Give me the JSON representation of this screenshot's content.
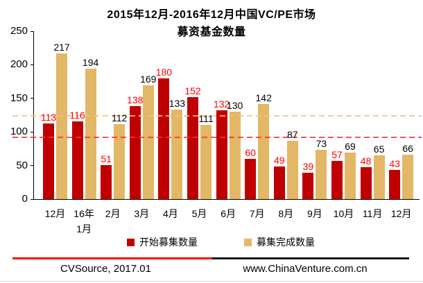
{
  "title": {
    "line1": "2015年12月-2016年12月中国VC/PE市场",
    "line2": "募资基金数量"
  },
  "chart_data": {
    "type": "bar",
    "title": "2015年12月-2016年12月中国VC/PE市场 募资基金数量",
    "categories": [
      [
        "12月"
      ],
      [
        "16年",
        "1月"
      ],
      [
        "2月"
      ],
      [
        "3月"
      ],
      [
        "4月"
      ],
      [
        "5月"
      ],
      [
        "6月"
      ],
      [
        "7月"
      ],
      [
        "8月"
      ],
      [
        "9月"
      ],
      [
        "10月"
      ],
      [
        "11月"
      ],
      [
        "12月"
      ]
    ],
    "series": [
      {
        "name": "开始募集数量",
        "color": "#C00000",
        "label_color": "#FF0000",
        "values": [
          113,
          116,
          51,
          138,
          180,
          152,
          132,
          60,
          49,
          39,
          57,
          48,
          43
        ]
      },
      {
        "name": "募集完成数量",
        "color": "#E2B766",
        "label_color": "#000000",
        "values": [
          217,
          194,
          112,
          169,
          133,
          111,
          130,
          142,
          87,
          73,
          69,
          65,
          66
        ]
      }
    ],
    "xlabel": "",
    "ylabel": "",
    "ylim": [
      0,
      250
    ],
    "yticks": [
      0,
      50,
      100,
      150,
      200,
      250
    ],
    "grid": false,
    "legend_position": "bottom",
    "reference_lines": [
      {
        "value": 124,
        "color": "#F2C27E",
        "style": "dashed"
      },
      {
        "value": 92,
        "color": "#FF3333",
        "style": "dashed"
      }
    ]
  },
  "footer": {
    "source": "CVSource, 2017.01",
    "website": "www.ChinaVenture.com.cn",
    "left_rule_color": "#FF0000",
    "right_rule_color": "#1A1A1A"
  }
}
